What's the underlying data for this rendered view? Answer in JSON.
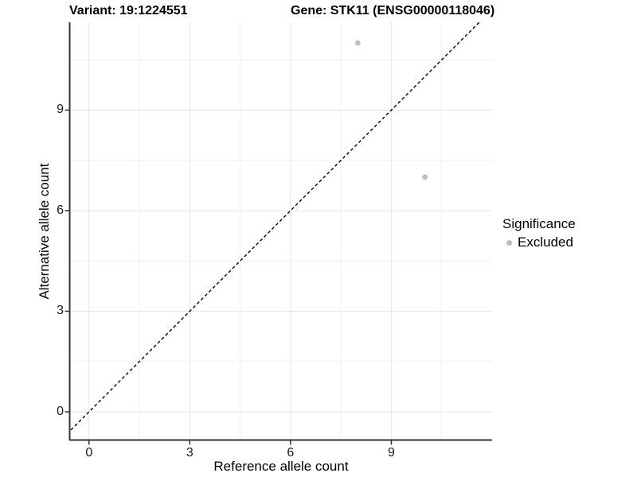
{
  "figure": {
    "title_left": "Variant: 19:1224551",
    "title_right": "Gene: STK11 (ENSG00000118046)"
  },
  "chart_data": {
    "type": "scatter",
    "title": "Variant: 19:1224551   Gene: STK11 (ENSG00000118046)",
    "xlabel": "Reference allele count",
    "ylabel": "Alternative allele count",
    "xlim": [
      -0.54,
      12.0
    ],
    "ylim": [
      -0.83,
      11.62
    ],
    "x_ticks": [
      0,
      3,
      6,
      9
    ],
    "y_ticks": [
      0,
      3,
      6,
      9
    ],
    "x_minor_ticks": [
      1.5,
      4.5,
      7.5,
      10.5
    ],
    "y_minor_ticks": [
      1.5,
      4.5,
      7.5,
      10.5
    ],
    "grid": true,
    "series": [
      {
        "name": "Excluded",
        "color": "#bdbdbd",
        "points": [
          {
            "x": 8,
            "y": 11
          },
          {
            "x": 10,
            "y": 7
          }
        ]
      }
    ],
    "reference_line": {
      "type": "identity",
      "slope": 1,
      "intercept": 0,
      "style": "dashed",
      "color": "#000000"
    },
    "legend": {
      "title": "Significance",
      "position": "right",
      "entries": [
        {
          "label": "Excluded",
          "color": "#bdbdbd"
        }
      ]
    }
  },
  "colors": {
    "background": "#ffffff",
    "axis_line": "#333333",
    "tick_label": "#1a1a1a",
    "grid_major": "#e4e4e4",
    "grid_minor": "#f0f0f0",
    "point": "#bdbdbd"
  }
}
